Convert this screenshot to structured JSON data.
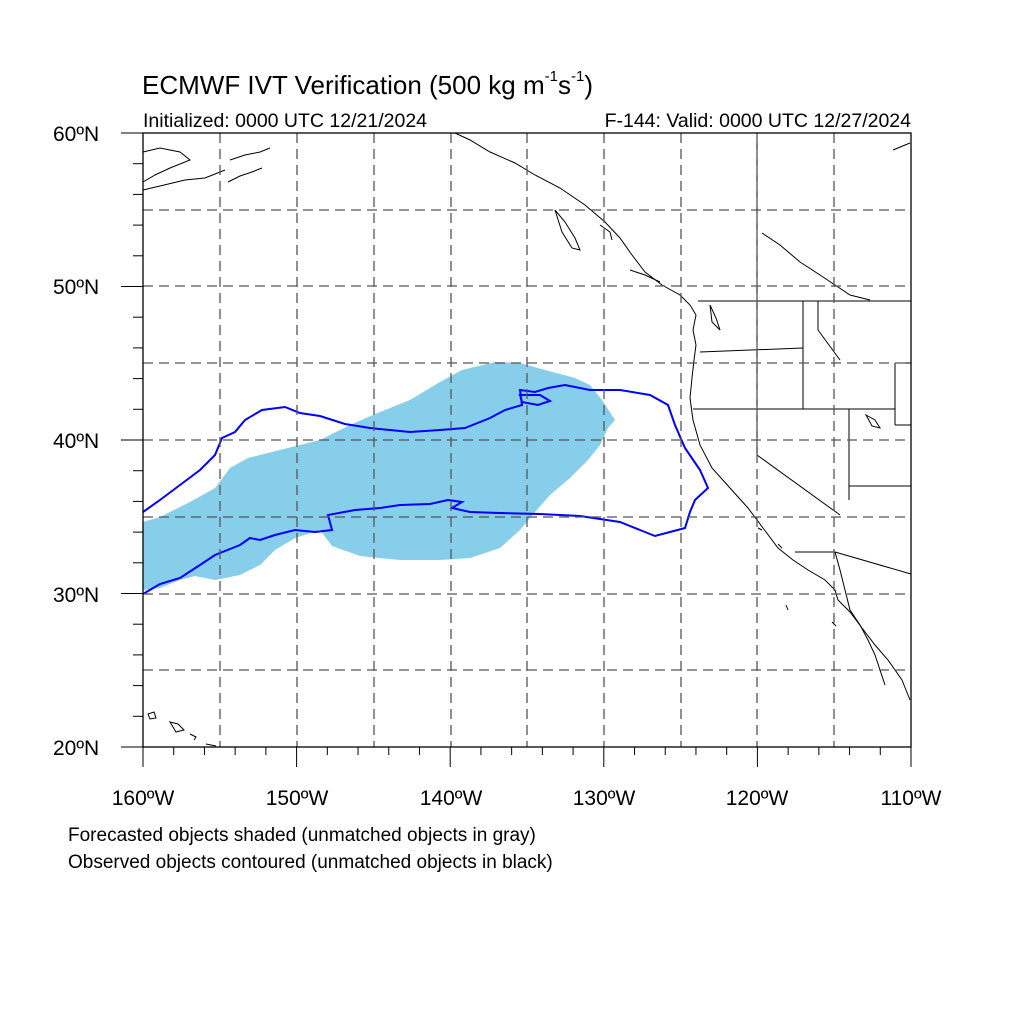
{
  "title": {
    "main": "ECMWF IVT Verification (500 kg m",
    "exp1": "-1",
    "mid": "s",
    "exp2": "-1",
    "close": ")"
  },
  "subtitle_left": "Initialized: 0000 UTC 12/21/2024",
  "subtitle_right": "F-144: Valid: 0000 UTC 12/27/2024",
  "lat_labels": [
    "60ºN",
    "50ºN",
    "40ºN",
    "30ºN",
    "20ºN"
  ],
  "lon_labels": [
    "160ºW",
    "150ºW",
    "140ºW",
    "130ºW",
    "120ºW",
    "110ºW"
  ],
  "notes": {
    "forecast": "Forecasted objects shaded (unmatched objects in gray)",
    "observed": "Observed objects contoured (unmatched objects in black)"
  },
  "colors": {
    "forecast_fill": "#87ceeb",
    "observed_contour": "#0000ff",
    "coastline": "#000000",
    "grid": "#555555"
  }
}
